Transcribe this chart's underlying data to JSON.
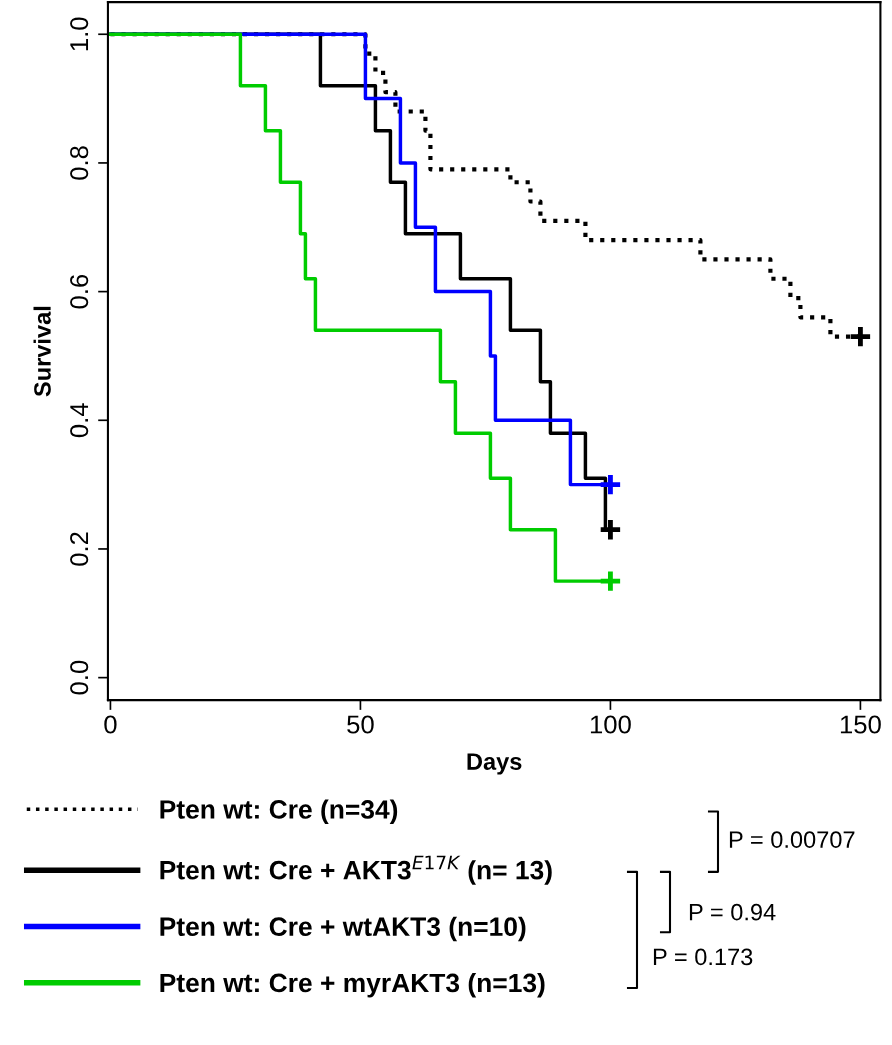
{
  "chart_data": {
    "type": "step",
    "xlabel": "Days",
    "ylabel": "Survival",
    "xlim": [
      -0.5,
      154
    ],
    "ylim": [
      -0.035,
      1.05
    ],
    "xticks": [
      0,
      50,
      100,
      150
    ],
    "yticks": [
      {
        "value": 0,
        "label": "0.0"
      },
      0.2,
      0.4,
      0.6,
      0.8,
      {
        "value": 1,
        "label": "1.0"
      }
    ],
    "grid": false,
    "legend": "bottom",
    "series": [
      {
        "name": "Pten wt: Cre (n=34)",
        "color": "#000000",
        "line_style": "dotted",
        "x": [
          0,
          51,
          53,
          55,
          57,
          63,
          64,
          80,
          84,
          86,
          95,
          118,
          132,
          136,
          138,
          144,
          150
        ],
        "values": [
          1.0,
          0.97,
          0.94,
          0.91,
          0.88,
          0.85,
          0.79,
          0.77,
          0.74,
          0.71,
          0.68,
          0.65,
          0.62,
          0.59,
          0.56,
          0.53,
          0.53
        ]
      },
      {
        "name": "Pten wt: Cre + AKT3$^{E17K}$ (n= 13)",
        "color": "#000000",
        "line_style": "solid",
        "x": [
          0,
          42,
          53,
          56,
          59,
          70,
          80,
          86,
          88,
          95,
          99,
          100
        ],
        "values": [
          1.0,
          0.92,
          0.85,
          0.77,
          0.69,
          0.62,
          0.54,
          0.46,
          0.38,
          0.31,
          0.23,
          0.23
        ]
      },
      {
        "name": "Pten wt: Cre + wtAKT3 (n=10)",
        "color": "#0000ff",
        "line_style": "solid",
        "x": [
          0,
          51,
          58,
          61,
          65,
          76,
          77,
          92,
          100
        ],
        "values": [
          1.0,
          0.9,
          0.8,
          0.7,
          0.6,
          0.5,
          0.4,
          0.3,
          0.3
        ]
      },
      {
        "name": "Pten wt: Cre + myrAKT3 (n=13)",
        "color": "#00cc00",
        "line_style": "solid",
        "x": [
          0,
          26,
          31,
          34,
          38,
          39,
          41,
          66,
          69,
          76,
          80,
          89,
          100
        ],
        "values": [
          1.0,
          0.92,
          0.85,
          0.77,
          0.69,
          0.62,
          0.54,
          0.46,
          0.38,
          0.31,
          0.23,
          0.15,
          0.15
        ]
      },
      {
        "type": "scatter",
        "marker": "cross",
        "color": "#000000",
        "x": [
          150
        ],
        "values": [
          0.53
        ]
      },
      {
        "type": "scatter",
        "marker": "cross",
        "color": "#000000",
        "x": [
          100
        ],
        "values": [
          0.23
        ]
      },
      {
        "type": "scatter",
        "marker": "cross",
        "color": "#0000ff",
        "x": [
          100
        ],
        "values": [
          0.3
        ]
      },
      {
        "type": "scatter",
        "marker": "cross",
        "color": "#00cc00",
        "x": [
          100
        ],
        "values": [
          0.15
        ]
      }
    ],
    "annotations": [
      "P = 0.00707",
      "P = 0.94",
      "P = 0.173"
    ]
  }
}
